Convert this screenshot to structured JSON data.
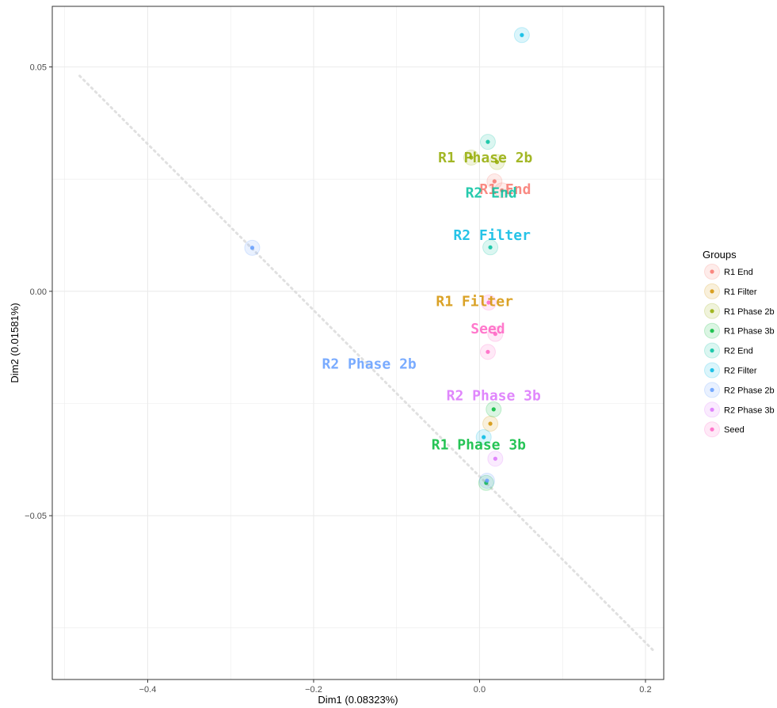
{
  "chart_data": {
    "type": "scatter",
    "xlabel": "Dim1 (0.08323%)",
    "ylabel": "Dim2 (0.01581%)",
    "xlim": [
      -0.515,
      0.222
    ],
    "ylim": [
      -0.0865,
      0.0635
    ],
    "x_ticks": [
      {
        "value": -0.4,
        "label": "−0.4"
      },
      {
        "value": -0.2,
        "label": "−0.2"
      },
      {
        "value": 0.0,
        "label": "0.0"
      },
      {
        "value": 0.2,
        "label": "0.2"
      }
    ],
    "y_ticks": [
      {
        "value": 0.05,
        "label": "0.05"
      },
      {
        "value": 0.0,
        "label": "0.00"
      },
      {
        "value": -0.05,
        "label": "−0.05"
      }
    ],
    "grid": true,
    "legend": {
      "title": "Groups",
      "placement": "right",
      "entries": [
        "R1 End",
        "R1 Filter",
        "R1 Phase 2b",
        "R1 Phase 3b",
        "R2 End",
        "R2 Filter",
        "R2 Phase 2b",
        "R2 Phase 3b",
        "Seed"
      ]
    },
    "trend_line": {
      "x": [
        -0.482,
        0.212
      ],
      "y": [
        0.048,
        -0.0805
      ]
    },
    "series": [
      {
        "name": "R1 End",
        "color": "#F8766D",
        "label": "R1 End",
        "label_pos": [
          0.031,
          0.0227
        ],
        "points": [
          {
            "x": 0.018,
            "y": 0.0245
          },
          {
            "x": 0.027,
            "y": 0.0225
          }
        ]
      },
      {
        "name": "R1 Filter",
        "color": "#D39200",
        "label": "R1 Filter",
        "label_pos": [
          -0.006,
          -0.0022
        ],
        "points": [
          {
            "x": 0.013,
            "y": -0.0295
          }
        ]
      },
      {
        "name": "R1 Phase 2b",
        "color": "#93AA00",
        "label": "R1 Phase 2b",
        "label_pos": [
          0.007,
          0.0298
        ],
        "points": [
          {
            "x": -0.01,
            "y": 0.0298
          },
          {
            "x": 0.021,
            "y": 0.0288
          }
        ]
      },
      {
        "name": "R1 Phase 3b",
        "color": "#00BA38",
        "label": "R1 Phase 3b",
        "label_pos": [
          -0.001,
          -0.0342
        ],
        "points": [
          {
            "x": 0.017,
            "y": -0.0263
          },
          {
            "x": 0.008,
            "y": -0.0427
          }
        ]
      },
      {
        "name": "R2 End",
        "color": "#00C19F",
        "label": "R2 End",
        "label_pos": [
          0.014,
          0.0219
        ],
        "points": [
          {
            "x": 0.01,
            "y": 0.0333
          },
          {
            "x": 0.013,
            "y": 0.0098
          }
        ]
      },
      {
        "name": "R2 Filter",
        "color": "#00B9E3",
        "label": "R2 Filter",
        "label_pos": [
          0.015,
          0.0125
        ],
        "points": [
          {
            "x": 0.051,
            "y": 0.0571
          },
          {
            "x": 0.005,
            "y": -0.0325
          }
        ]
      },
      {
        "name": "R2 Phase 2b",
        "color": "#619CFF",
        "label": "R2 Phase 2b",
        "label_pos": [
          -0.133,
          -0.0162
        ],
        "points": [
          {
            "x": -0.274,
            "y": 0.0097
          },
          {
            "x": 0.009,
            "y": -0.0422
          }
        ]
      },
      {
        "name": "R2 Phase 3b",
        "color": "#DB72FB",
        "label": "R2 Phase 3b",
        "label_pos": [
          0.017,
          -0.0232
        ],
        "points": [
          {
            "x": 0.019,
            "y": -0.0373
          }
        ]
      },
      {
        "name": "Seed",
        "color": "#FF61C3",
        "label": "Seed",
        "label_pos": [
          0.01,
          -0.0083
        ],
        "points": [
          {
            "x": 0.01,
            "y": -0.0135
          },
          {
            "x": 0.019,
            "y": -0.0095
          },
          {
            "x": 0.011,
            "y": -0.0025
          }
        ]
      }
    ]
  }
}
